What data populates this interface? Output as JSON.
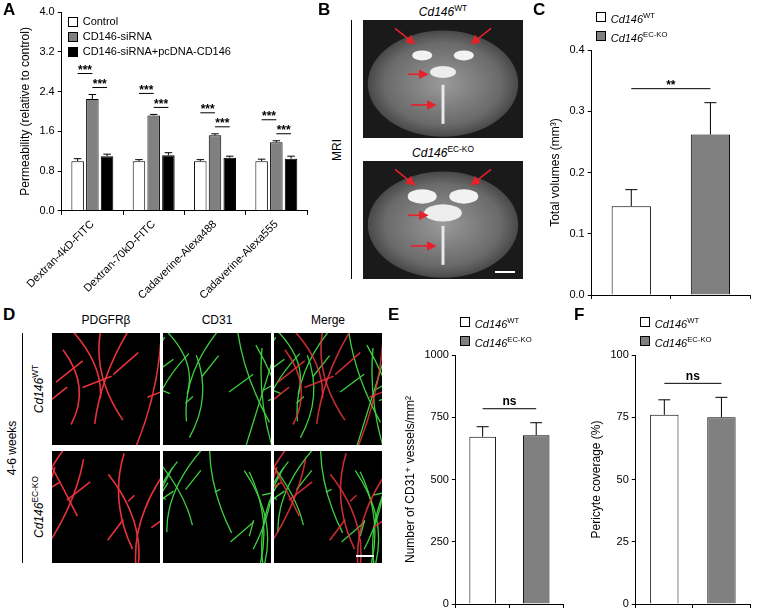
{
  "chart_data": [
    {
      "panel": "A",
      "type": "bar",
      "ylabel": "Permeability (relative to control)",
      "categories": [
        "Dextran-4kD-FITC",
        "Dextran-70kD-FITC",
        "Cadaverine-Alexa488",
        "Cadaverine-Alexa555"
      ],
      "series": [
        {
          "name": "Control",
          "color": "#ffffff",
          "values": [
            1.0,
            1.0,
            1.0,
            1.0
          ],
          "errors": [
            0.05,
            0.03,
            0.03,
            0.04
          ]
        },
        {
          "name": "CD146-siRNA",
          "color": "#808080",
          "values": [
            2.25,
            1.92,
            1.52,
            1.38
          ],
          "errors": [
            0.09,
            0.02,
            0.03,
            0.03
          ]
        },
        {
          "name": "CD146-siRNA+pcDNA-CD146",
          "color": "#000000",
          "values": [
            1.1,
            1.12,
            1.07,
            1.05
          ],
          "errors": [
            0.04,
            0.05,
            0.03,
            0.05
          ]
        }
      ],
      "ylim": [
        0,
        4
      ],
      "yticks": [
        {
          "value": 0,
          "label": "0.0"
        },
        0.8,
        1.6,
        2.4,
        3.2,
        {
          "value": 4,
          "label": "4.0"
        }
      ],
      "grid": false,
      "legend": "top-left",
      "annotations": [
        {
          "text": "***",
          "category": "Dextran-4kD-FITC",
          "between": [
            "Control",
            "CD146-siRNA"
          ]
        },
        {
          "text": "***",
          "category": "Dextran-4kD-FITC",
          "between": [
            "CD146-siRNA",
            "CD146-siRNA+pcDNA-CD146"
          ]
        },
        {
          "text": "***",
          "category": "Dextran-70kD-FITC",
          "between": [
            "Control",
            "CD146-siRNA"
          ]
        },
        {
          "text": "***",
          "category": "Dextran-70kD-FITC",
          "between": [
            "CD146-siRNA",
            "CD146-siRNA+pcDNA-CD146"
          ]
        },
        {
          "text": "***",
          "category": "Cadaverine-Alexa488",
          "between": [
            "Control",
            "CD146-siRNA"
          ]
        },
        {
          "text": "***",
          "category": "Cadaverine-Alexa488",
          "between": [
            "CD146-siRNA",
            "CD146-siRNA+pcDNA-CD146"
          ]
        },
        {
          "text": "***",
          "category": "Cadaverine-Alexa555",
          "between": [
            "Control",
            "CD146-siRNA"
          ]
        },
        {
          "text": "***",
          "category": "Cadaverine-Alexa555",
          "between": [
            "CD146-siRNA",
            "CD146-siRNA+pcDNA-CD146"
          ]
        }
      ]
    },
    {
      "panel": "C",
      "type": "bar",
      "ylabel": "Total volumes (mm³)",
      "categories": [
        "Cd146WT",
        "Cd146EC-KO"
      ],
      "values": [
        0.145,
        0.262
      ],
      "errors": [
        0.027,
        0.052
      ],
      "colors": [
        "#ffffff",
        "#808080"
      ],
      "ylim": [
        0,
        0.4
      ],
      "yticks": [
        {
          "value": 0,
          "label": "0.0"
        },
        0.1,
        0.2,
        0.3,
        0.4
      ],
      "grid": false,
      "legend": "top",
      "tick_labels": "y",
      "annotations": [
        {
          "text": "**",
          "between": [
            "Cd146WT",
            "Cd146EC-KO"
          ]
        }
      ]
    },
    {
      "panel": "E",
      "type": "bar",
      "ylabel": "Number of CD31⁺ vessels/mm²",
      "categories": [
        "Cd146WT",
        "Cd146EC-KO"
      ],
      "values": [
        672,
        678
      ],
      "errors": [
        40,
        50
      ],
      "colors": [
        "#ffffff",
        "#808080"
      ],
      "ylim": [
        0,
        1000
      ],
      "yticks": [
        0,
        250,
        500,
        750,
        1000
      ],
      "grid": false,
      "legend": "top",
      "tick_labels": "y",
      "annotations": [
        {
          "text": "ns",
          "between": [
            "Cd146WT",
            "Cd146EC-KO"
          ]
        }
      ]
    },
    {
      "panel": "F",
      "type": "bar",
      "ylabel": "Pericyte coverage (%)",
      "categories": [
        "Cd146WT",
        "Cd146EC-KO"
      ],
      "values": [
        76,
        75
      ],
      "errors": [
        6,
        8
      ],
      "colors": [
        "#ffffff",
        "#808080"
      ],
      "ylim": [
        0,
        100
      ],
      "yticks": [
        0,
        25,
        50,
        75,
        100
      ],
      "grid": false,
      "legend": "top",
      "tick_labels": "y",
      "annotations": [
        {
          "text": "ns",
          "between": [
            "Cd146WT",
            "Cd146EC-KO"
          ]
        }
      ]
    }
  ],
  "images": [
    {
      "panel": "B",
      "modality": "MRI",
      "rows": [
        "Cd146WT",
        "Cd146EC-KO"
      ]
    },
    {
      "panel": "D",
      "group": "4-6 weeks",
      "columns": [
        "PDGFRβ",
        "CD31",
        "Merge"
      ],
      "rows": [
        "Cd146WT",
        "Cd146EC-KO"
      ]
    }
  ]
}
